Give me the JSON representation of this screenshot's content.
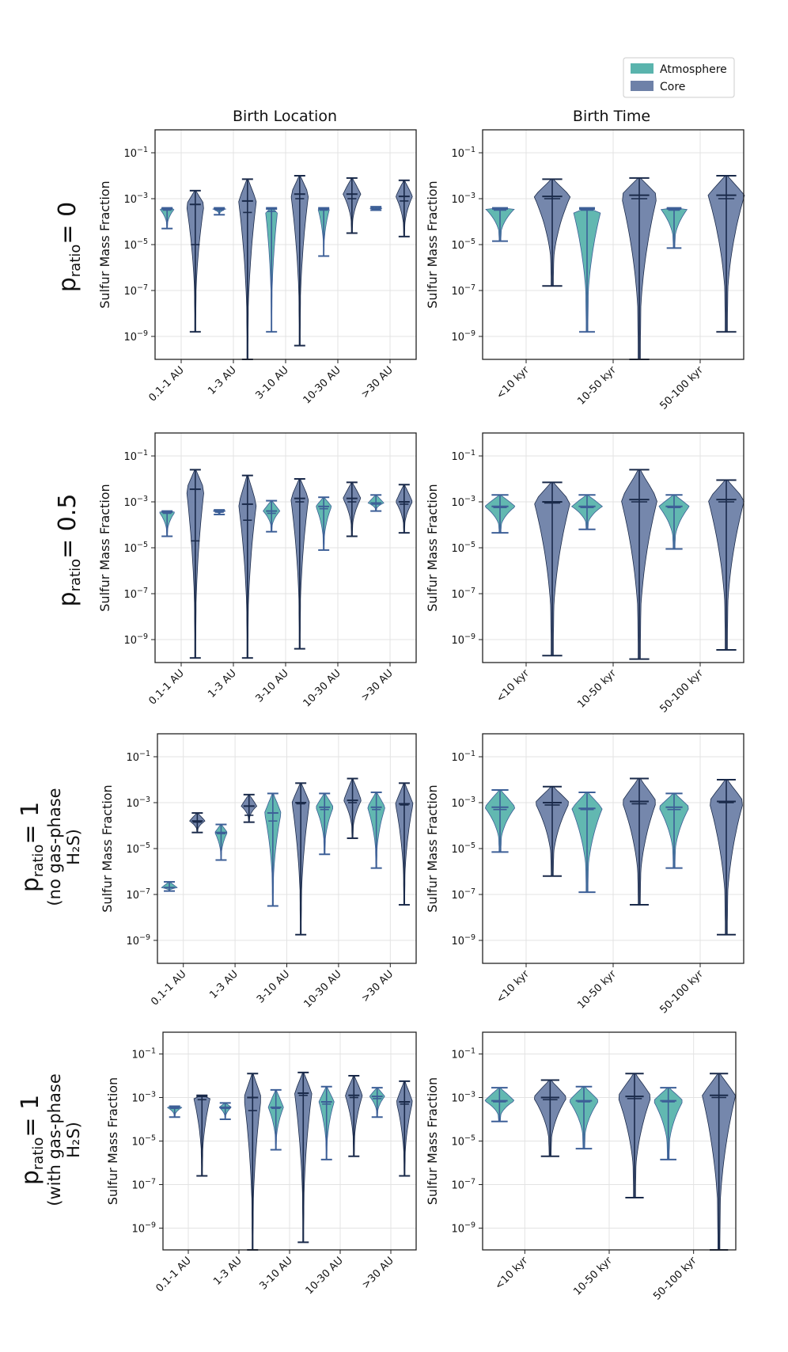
{
  "colors": {
    "atmosphere": "#5ab4ad",
    "core": "#6e81a8",
    "atm_line": "#3d5f97",
    "core_line": "#1a2a4a",
    "grid": "#e3e3e3",
    "axis": "#222222"
  },
  "legend": {
    "atmosphere": "Atmosphere",
    "core": "Core"
  },
  "column_titles": [
    "Birth Location",
    "Birth Time"
  ],
  "ylabel": "Sulfur Mass Fraction",
  "yticks": [
    {
      "exp": -1,
      "base": "10",
      "sup": "−1"
    },
    {
      "exp": -3,
      "base": "10",
      "sup": "−3"
    },
    {
      "exp": -5,
      "base": "10",
      "sup": "−5"
    },
    {
      "exp": -7,
      "base": "10",
      "sup": "−7"
    },
    {
      "exp": -9,
      "base": "10",
      "sup": "−9"
    }
  ],
  "row_labels": [
    {
      "p": "p",
      "sub": "ratio",
      "value": "= 0",
      "lines": []
    },
    {
      "p": "p",
      "sub": "ratio",
      "value": "= 0.5",
      "lines": []
    },
    {
      "p": "p",
      "sub": "ratio",
      "value": "= 1",
      "lines": [
        "(no gas-phase",
        "H₂S)"
      ]
    },
    {
      "p": "p",
      "sub": "ratio",
      "value": "= 1",
      "lines": [
        "(with gas-phase",
        "H₂S)"
      ]
    }
  ],
  "chart_data": [
    {
      "type": "violin",
      "row": 0,
      "col": 0,
      "title": "Birth Location",
      "xlabel": "",
      "ylabel": "Sulfur Mass Fraction",
      "yscale": "log",
      "ylim_exp": [
        -10,
        0
      ],
      "categories": [
        "0.1-1 AU",
        "1-3 AU",
        "3-10 AU",
        "10-30 AU",
        ">30 AU"
      ],
      "series": [
        {
          "name": "Atmosphere",
          "violins": [
            {
              "min": -4.3,
              "max": -3.4,
              "median": -3.45,
              "mean": -3.5,
              "width": 0.7
            },
            {
              "min": -3.7,
              "max": -3.4,
              "median": -3.45,
              "mean": -3.5,
              "width": 0.6
            },
            {
              "min": -8.8,
              "max": -3.4,
              "median": -3.45,
              "mean": -3.55,
              "width": 0.6
            },
            {
              "min": -5.5,
              "max": -3.4,
              "median": -3.45,
              "mean": -3.5,
              "width": 0.55
            },
            {
              "min": -3.5,
              "max": -3.35,
              "median": -3.42,
              "mean": -3.45,
              "width": 0.6
            }
          ]
        },
        {
          "name": "Core",
          "violins": [
            {
              "min": -8.8,
              "max": -2.65,
              "median": -3.25,
              "mean": -5.0,
              "width": 0.85
            },
            {
              "min": -10.0,
              "max": -2.15,
              "median": -3.1,
              "mean": -3.6,
              "width": 0.85
            },
            {
              "min": -9.4,
              "max": -2.0,
              "median": -2.8,
              "mean": -3.0,
              "width": 0.85
            },
            {
              "min": -4.5,
              "max": -2.1,
              "median": -2.8,
              "mean": -3.0,
              "width": 0.85
            },
            {
              "min": -4.65,
              "max": -2.2,
              "median": -2.9,
              "mean": -3.1,
              "width": 0.8
            }
          ]
        }
      ]
    },
    {
      "type": "violin",
      "row": 0,
      "col": 1,
      "title": "Birth Time",
      "xlabel": "",
      "ylabel": "Sulfur Mass Fraction",
      "yscale": "log",
      "ylim_exp": [
        -10,
        0
      ],
      "categories": [
        "<10 kyr",
        "10-50 kyr",
        "50-100 kyr"
      ],
      "series": [
        {
          "name": "Atmosphere",
          "violins": [
            {
              "min": -4.85,
              "max": -3.4,
              "median": -3.45,
              "mean": -3.5,
              "width": 0.75
            },
            {
              "min": -8.8,
              "max": -3.4,
              "median": -3.45,
              "mean": -3.5,
              "width": 0.75
            },
            {
              "min": -5.15,
              "max": -3.4,
              "median": -3.45,
              "mean": -3.5,
              "width": 0.7
            }
          ]
        },
        {
          "name": "Core",
          "violins": [
            {
              "min": -6.8,
              "max": -2.15,
              "median": -2.9,
              "mean": -3.0,
              "width": 0.95
            },
            {
              "min": -10.0,
              "max": -2.1,
              "median": -2.85,
              "mean": -3.0,
              "width": 0.95
            },
            {
              "min": -8.8,
              "max": -2.0,
              "median": -2.85,
              "mean": -3.0,
              "width": 0.95
            }
          ]
        }
      ]
    },
    {
      "type": "violin",
      "row": 1,
      "col": 0,
      "title": "",
      "xlabel": "",
      "ylabel": "Sulfur Mass Fraction",
      "yscale": "log",
      "ylim_exp": [
        -10,
        0
      ],
      "categories": [
        "0.1-1 AU",
        "1-3 AU",
        "3-10 AU",
        "10-30 AU",
        ">30 AU"
      ],
      "series": [
        {
          "name": "Atmosphere",
          "violins": [
            {
              "min": -4.5,
              "max": -3.4,
              "median": -3.45,
              "mean": -3.5,
              "width": 0.75
            },
            {
              "min": -3.55,
              "max": -3.35,
              "median": -3.4,
              "mean": -3.45,
              "width": 0.6
            },
            {
              "min": -4.3,
              "max": -2.95,
              "median": -3.4,
              "mean": -3.5,
              "width": 0.8
            },
            {
              "min": -5.1,
              "max": -2.8,
              "median": -3.2,
              "mean": -3.3,
              "width": 0.75
            },
            {
              "min": -3.4,
              "max": -2.7,
              "median": -3.05,
              "mean": -3.1,
              "width": 0.75
            }
          ]
        },
        {
          "name": "Core",
          "violins": [
            {
              "min": -9.8,
              "max": -1.6,
              "median": -2.45,
              "mean": -4.7,
              "width": 0.85
            },
            {
              "min": -9.8,
              "max": -1.85,
              "median": -3.1,
              "mean": -3.8,
              "width": 0.85
            },
            {
              "min": -9.4,
              "max": -2.0,
              "median": -2.85,
              "mean": -3.0,
              "width": 0.85
            },
            {
              "min": -4.5,
              "max": -2.15,
              "median": -2.85,
              "mean": -3.0,
              "width": 0.85
            },
            {
              "min": -4.35,
              "max": -2.25,
              "median": -3.0,
              "mean": -3.1,
              "width": 0.8
            }
          ]
        }
      ]
    },
    {
      "type": "violin",
      "row": 1,
      "col": 1,
      "title": "",
      "xlabel": "",
      "ylabel": "Sulfur Mass Fraction",
      "yscale": "log",
      "ylim_exp": [
        -10,
        0
      ],
      "categories": [
        "<10 kyr",
        "10-50 kyr",
        "50-100 kyr"
      ],
      "series": [
        {
          "name": "Atmosphere",
          "violins": [
            {
              "min": -4.35,
              "max": -2.7,
              "median": -3.2,
              "mean": -3.25,
              "width": 0.8
            },
            {
              "min": -4.2,
              "max": -2.7,
              "median": -3.2,
              "mean": -3.25,
              "width": 0.8
            },
            {
              "min": -5.05,
              "max": -2.7,
              "median": -3.2,
              "mean": -3.25,
              "width": 0.8
            }
          ]
        },
        {
          "name": "Core",
          "violins": [
            {
              "min": -9.7,
              "max": -2.15,
              "median": -3.0,
              "mean": -3.05,
              "width": 0.95
            },
            {
              "min": -9.85,
              "max": -1.6,
              "median": -2.9,
              "mean": -3.0,
              "width": 0.95
            },
            {
              "min": -9.45,
              "max": -2.05,
              "median": -2.9,
              "mean": -3.0,
              "width": 0.95
            }
          ]
        }
      ]
    },
    {
      "type": "violin",
      "row": 2,
      "col": 0,
      "title": "",
      "xlabel": "",
      "ylabel": "Sulfur Mass Fraction",
      "yscale": "log",
      "ylim_exp": [
        -10,
        0
      ],
      "categories": [
        "0.1-1 AU",
        "1-3 AU",
        "3-10 AU",
        "10-30 AU",
        ">30 AU"
      ],
      "series": [
        {
          "name": "Atmosphere",
          "violins": [
            {
              "min": -6.85,
              "max": -6.45,
              "median": -6.7,
              "mean": -6.7,
              "width": 0.75
            },
            {
              "min": -5.5,
              "max": -3.95,
              "median": -4.3,
              "mean": -4.35,
              "width": 0.6
            },
            {
              "min": -7.5,
              "max": -2.6,
              "median": -3.45,
              "mean": -3.8,
              "width": 0.8
            },
            {
              "min": -5.25,
              "max": -2.6,
              "median": -3.2,
              "mean": -3.3,
              "width": 0.85
            },
            {
              "min": -5.85,
              "max": -2.55,
              "median": -3.2,
              "mean": -3.3,
              "width": 0.85
            }
          ]
        },
        {
          "name": "Core",
          "violins": [
            {
              "min": -4.3,
              "max": -3.45,
              "median": -3.8,
              "mean": -3.85,
              "width": 0.75
            },
            {
              "min": -3.85,
              "max": -2.65,
              "median": -3.15,
              "mean": -3.55,
              "width": 0.75
            },
            {
              "min": -8.75,
              "max": -2.15,
              "median": -3.0,
              "mean": -3.05,
              "width": 0.85
            },
            {
              "min": -4.55,
              "max": -1.95,
              "median": -2.9,
              "mean": -3.0,
              "width": 0.85
            },
            {
              "min": -7.45,
              "max": -2.15,
              "median": -3.05,
              "mean": -3.1,
              "width": 0.85
            }
          ]
        }
      ]
    },
    {
      "type": "violin",
      "row": 2,
      "col": 1,
      "title": "",
      "xlabel": "",
      "ylabel": "Sulfur Mass Fraction",
      "yscale": "log",
      "ylim_exp": [
        -10,
        0
      ],
      "categories": [
        "<10 kyr",
        "10-50 kyr",
        "50-100 kyr"
      ],
      "series": [
        {
          "name": "Atmosphere",
          "violins": [
            {
              "min": -5.15,
              "max": -2.45,
              "median": -3.2,
              "mean": -3.3,
              "width": 0.8
            },
            {
              "min": -6.9,
              "max": -2.55,
              "median": -3.25,
              "mean": -3.3,
              "width": 0.8
            },
            {
              "min": -5.85,
              "max": -2.6,
              "median": -3.2,
              "mean": -3.3,
              "width": 0.8
            }
          ]
        },
        {
          "name": "Core",
          "violins": [
            {
              "min": -6.2,
              "max": -2.3,
              "median": -3.0,
              "mean": -3.1,
              "width": 0.9
            },
            {
              "min": -7.45,
              "max": -1.95,
              "median": -2.95,
              "mean": -3.05,
              "width": 0.9
            },
            {
              "min": -8.75,
              "max": -2.0,
              "median": -2.95,
              "mean": -3.0,
              "width": 0.9
            }
          ]
        }
      ]
    },
    {
      "type": "violin",
      "row": 3,
      "col": 0,
      "title": "",
      "xlabel": "",
      "ylabel": "Sulfur Mass Fraction",
      "yscale": "log",
      "ylim_exp": [
        -10,
        0
      ],
      "categories": [
        "0.1-1 AU",
        "1-3 AU",
        "3-10 AU",
        "10-30 AU",
        ">30 AU"
      ],
      "series": [
        {
          "name": "Atmosphere",
          "violins": [
            {
              "min": -3.9,
              "max": -3.4,
              "median": -3.45,
              "mean": -3.5,
              "width": 0.75
            },
            {
              "min": -4.0,
              "max": -3.25,
              "median": -3.45,
              "mean": -3.5,
              "width": 0.6
            },
            {
              "min": -5.4,
              "max": -2.65,
              "median": -3.45,
              "mean": -3.5,
              "width": 0.75
            },
            {
              "min": -5.85,
              "max": -2.5,
              "median": -3.2,
              "mean": -3.3,
              "width": 0.75
            },
            {
              "min": -3.9,
              "max": -2.55,
              "median": -2.95,
              "mean": -3.05,
              "width": 0.75
            }
          ]
        },
        {
          "name": "Core",
          "violins": [
            {
              "min": -6.6,
              "max": -2.9,
              "median": -2.95,
              "mean": -3.1,
              "width": 0.85
            },
            {
              "min": -10.0,
              "max": -1.9,
              "median": -3.0,
              "mean": -3.6,
              "width": 0.85
            },
            {
              "min": -9.65,
              "max": -1.85,
              "median": -2.8,
              "mean": -2.9,
              "width": 0.85
            },
            {
              "min": -5.7,
              "max": -2.0,
              "median": -2.9,
              "mean": -3.0,
              "width": 0.85
            },
            {
              "min": -6.6,
              "max": -2.25,
              "median": -3.2,
              "mean": -3.3,
              "width": 0.8
            }
          ]
        }
      ]
    },
    {
      "type": "violin",
      "row": 3,
      "col": 1,
      "title": "",
      "xlabel": "",
      "ylabel": "Sulfur Mass Fraction",
      "yscale": "log",
      "ylim_exp": [
        -10,
        0
      ],
      "categories": [
        "<10 kyr",
        "10-50 kyr",
        "50-100 kyr"
      ],
      "series": [
        {
          "name": "Atmosphere",
          "violins": [
            {
              "min": -4.1,
              "max": -2.55,
              "median": -3.15,
              "mean": -3.2,
              "width": 0.8
            },
            {
              "min": -5.35,
              "max": -2.5,
              "median": -3.15,
              "mean": -3.2,
              "width": 0.8
            },
            {
              "min": -5.85,
              "max": -2.55,
              "median": -3.15,
              "mean": -3.2,
              "width": 0.8
            }
          ]
        },
        {
          "name": "Core",
          "violins": [
            {
              "min": -5.7,
              "max": -2.2,
              "median": -3.0,
              "mean": -3.1,
              "width": 0.9
            },
            {
              "min": -7.6,
              "max": -1.9,
              "median": -2.95,
              "mean": -3.05,
              "width": 0.9
            },
            {
              "min": -10.0,
              "max": -1.9,
              "median": -2.9,
              "mean": -3.0,
              "width": 0.9
            }
          ]
        }
      ]
    }
  ]
}
